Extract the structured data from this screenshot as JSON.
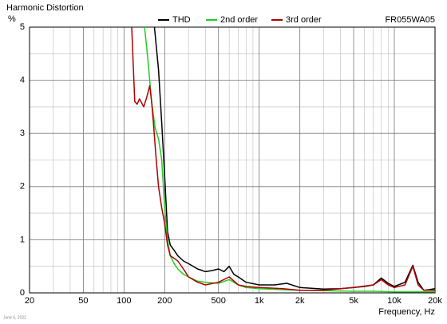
{
  "chart_data": {
    "type": "line",
    "title": "Harmonic Distortion",
    "y_label": "%",
    "x_label": "Frequency, Hz",
    "model": "FR055WA05",
    "date": "June 6, 2022",
    "x_scale": "log",
    "xlim": [
      20,
      20000
    ],
    "ylim": [
      0,
      5
    ],
    "xticks": [
      20,
      50,
      100,
      200,
      500,
      {
        "value": 1000,
        "label": "1k"
      },
      {
        "value": 2000,
        "label": "2k"
      },
      {
        "value": 5000,
        "label": "5k"
      },
      {
        "value": 10000,
        "label": "10k"
      },
      {
        "value": 20000,
        "label": "20k"
      }
    ],
    "yticks": [
      0,
      1,
      2,
      3,
      4,
      5
    ],
    "x_minor_grid": [
      30,
      40,
      60,
      70,
      80,
      90,
      300,
      400,
      600,
      700,
      800,
      900,
      3000,
      4000,
      6000,
      7000,
      8000,
      9000
    ],
    "y_minor_grid": [
      0.5,
      1.5,
      2.5,
      3.5,
      4.5
    ],
    "grid": true,
    "legend": "top",
    "series": [
      {
        "name": "THD",
        "color": "#000000",
        "x": [
          168,
          180,
          190,
          200,
          210,
          220,
          235,
          250,
          275,
          300,
          350,
          400,
          450,
          500,
          550,
          600,
          650,
          700,
          800,
          1000,
          1300,
          1600,
          2000,
          3000,
          4000,
          5000,
          6000,
          7000,
          8000,
          9000,
          10000,
          12000,
          13700,
          15000,
          16500,
          18000,
          20000
        ],
        "values": [
          5,
          4.2,
          3.2,
          2.2,
          1.15,
          0.9,
          0.8,
          0.7,
          0.6,
          0.55,
          0.45,
          0.4,
          0.42,
          0.45,
          0.4,
          0.5,
          0.35,
          0.3,
          0.2,
          0.15,
          0.15,
          0.18,
          0.1,
          0.07,
          0.08,
          0.1,
          0.12,
          0.15,
          0.28,
          0.18,
          0.12,
          0.2,
          0.52,
          0.2,
          0.05,
          0.06,
          0.08
        ]
      },
      {
        "name": "2nd order",
        "color": "#22cc22",
        "x": [
          142,
          150,
          160,
          170,
          180,
          190,
          200,
          210,
          220,
          235,
          250,
          275,
          300,
          350,
          400,
          500,
          600,
          700,
          800,
          1000,
          1500,
          2000,
          3000,
          5000,
          7000,
          10000,
          15000,
          20000
        ],
        "values": [
          5,
          4.4,
          3.6,
          3.1,
          2.9,
          2.5,
          1.6,
          1.0,
          0.7,
          0.55,
          0.45,
          0.35,
          0.3,
          0.22,
          0.2,
          0.18,
          0.25,
          0.15,
          0.1,
          0.08,
          0.06,
          0.05,
          0.04,
          0.03,
          0.03,
          0.02,
          0.02,
          0.02
        ]
      },
      {
        "name": "3rd order",
        "color": "#b00000",
        "x": [
          114,
          120,
          125,
          130,
          140,
          148,
          155,
          160,
          165,
          172,
          180,
          190,
          200,
          210,
          220,
          235,
          250,
          275,
          300,
          350,
          400,
          500,
          600,
          700,
          800,
          1000,
          1500,
          2000,
          3000,
          5000,
          7000,
          8000,
          9000,
          10000,
          12000,
          13700,
          15000,
          16500,
          20000
        ],
        "values": [
          5,
          3.6,
          3.55,
          3.65,
          3.5,
          3.7,
          3.9,
          3.6,
          3.2,
          2.6,
          2.0,
          1.6,
          1.3,
          0.9,
          0.7,
          0.65,
          0.6,
          0.45,
          0.3,
          0.2,
          0.15,
          0.2,
          0.3,
          0.15,
          0.12,
          0.1,
          0.08,
          0.05,
          0.05,
          0.1,
          0.15,
          0.25,
          0.15,
          0.1,
          0.15,
          0.5,
          0.15,
          0.05,
          0.05
        ]
      }
    ]
  }
}
